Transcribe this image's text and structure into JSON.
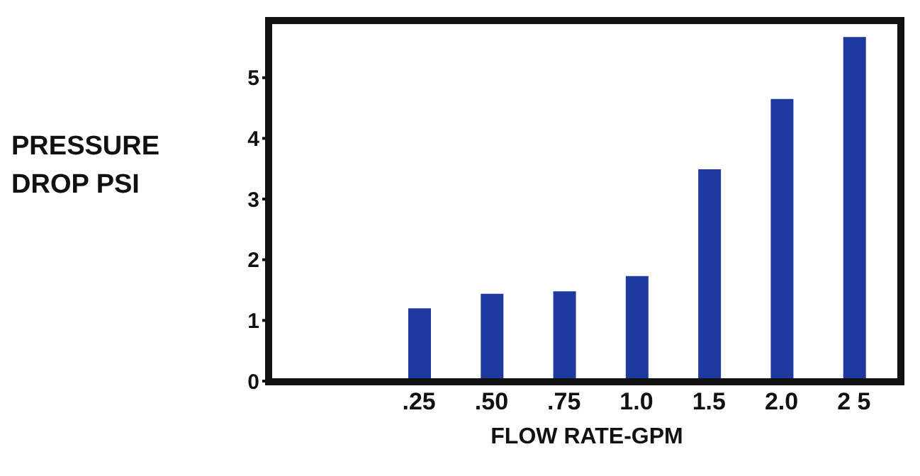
{
  "chart_data": {
    "type": "bar",
    "xlabel": "FLOW RATE-GPM",
    "ylabel": "PRESSURE DROP PSI",
    "categories": [
      ".25",
      ".50",
      ".75",
      "1.0",
      "1.5",
      "2.0",
      "2 5"
    ],
    "values": [
      1.2,
      1.44,
      1.48,
      1.73,
      3.49,
      4.65,
      5.67
    ],
    "color": "#1e3a9e",
    "ylim": [
      0,
      6
    ],
    "yticks": [
      0,
      1,
      2,
      3,
      4,
      5
    ],
    "grid": false,
    "legend": false
  }
}
